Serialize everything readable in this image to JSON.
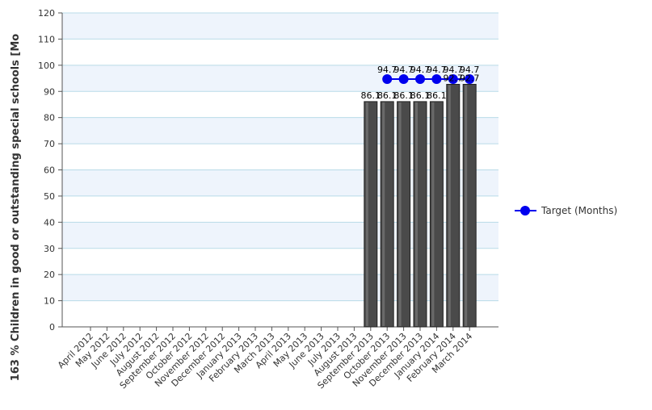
{
  "chart_data": {
    "type": "bar",
    "ylabel": "163 % Children in good or outstanding special schools [Mo",
    "ylim": [
      0,
      120
    ],
    "yticks": [
      0,
      10,
      20,
      30,
      40,
      50,
      60,
      70,
      80,
      90,
      100,
      110,
      120
    ],
    "grid": true,
    "legend_position": "right",
    "categories": [
      "April 2012",
      "May 2012",
      "June 2012",
      "July 2012",
      "August 2012",
      "September 2012",
      "October 2012",
      "November 2012",
      "December 2012",
      "January 2013",
      "February 2013",
      "March 2013",
      "April 2013",
      "May 2013",
      "June 2013",
      "July 2013",
      "August 2013",
      "September 2013",
      "October 2013",
      "November 2013",
      "December 2013",
      "January 2014",
      "February 2014",
      "March 2014"
    ],
    "series": [
      {
        "type": "bar",
        "values": [
          null,
          null,
          null,
          null,
          null,
          null,
          null,
          null,
          null,
          null,
          null,
          null,
          null,
          null,
          null,
          null,
          null,
          86.1,
          86.1,
          86.1,
          86.1,
          86.1,
          92.7,
          92.7
        ],
        "color": "#4a4a4a"
      },
      {
        "type": "line",
        "name": "Target (Months)",
        "values": [
          null,
          null,
          null,
          null,
          null,
          null,
          null,
          null,
          null,
          null,
          null,
          null,
          null,
          null,
          null,
          null,
          null,
          null,
          94.7,
          94.7,
          94.7,
          94.7,
          94.7,
          94.7
        ],
        "color": "#0000ee"
      }
    ],
    "bar_labels": [
      "86.1",
      "86.1",
      "86.1",
      "86.1",
      "86.1",
      "92.7",
      "92.7"
    ],
    "line_labels": [
      "94.7",
      "94.7",
      "94.7",
      "94.7",
      "94.7",
      "94.7"
    ]
  }
}
